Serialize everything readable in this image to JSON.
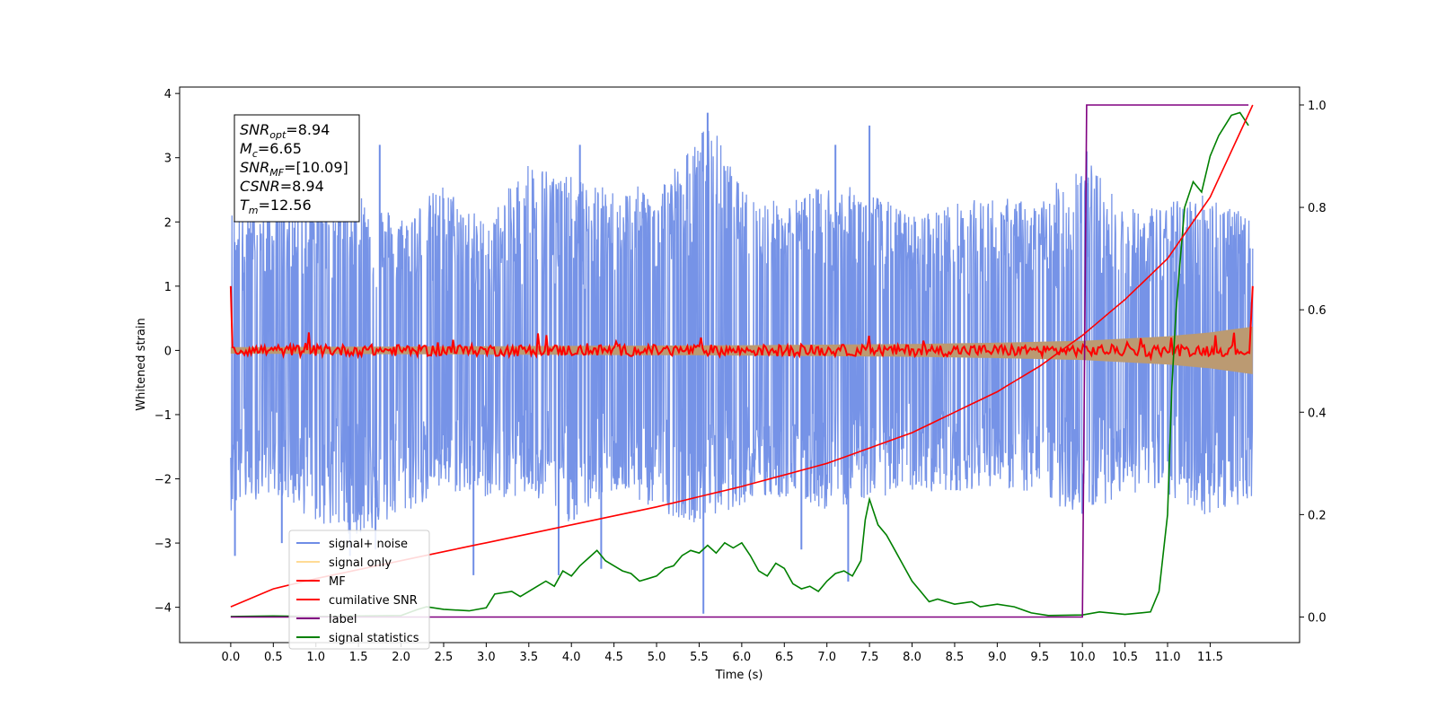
{
  "chart_data": {
    "type": "line",
    "xlabel": "Time (s)",
    "ylabel": "Whitened strain",
    "xlim": [
      -0.6,
      12.55
    ],
    "ylim": [
      -4.55,
      4.1
    ],
    "y2lim": [
      -0.05,
      1.035
    ],
    "xticks": [
      0.0,
      0.5,
      1.0,
      1.5,
      2.0,
      2.5,
      3.0,
      3.5,
      4.0,
      4.5,
      5.0,
      5.5,
      6.0,
      6.5,
      7.0,
      7.5,
      8.0,
      8.5,
      9.0,
      9.5,
      10.0,
      10.5,
      11.0,
      11.5
    ],
    "xtick_labels": [
      "0.0",
      "0.5",
      "1.0",
      "1.5",
      "2.0",
      "2.5",
      "3.0",
      "3.5",
      "4.0",
      "4.5",
      "5.0",
      "5.5",
      "6.0",
      "6.5",
      "7.0",
      "7.5",
      "8.0",
      "8.5",
      "9.0",
      "9.5",
      "10.0",
      "10.5",
      "11.0",
      "11.5"
    ],
    "yticks": [
      -4,
      -3,
      -2,
      -1,
      0,
      1,
      2,
      3,
      4
    ],
    "ytick_labels": [
      "−4",
      "−3",
      "−2",
      "−1",
      "0",
      "1",
      "2",
      "3",
      "4"
    ],
    "y2ticks": [
      0.0,
      0.2,
      0.4,
      0.6,
      0.8,
      1.0
    ],
    "y2tick_labels": [
      "0.0",
      "0.2",
      "0.4",
      "0.6",
      "0.8",
      "1.0"
    ],
    "legend_position": "lower-left",
    "grid": false,
    "series": [
      {
        "name": "signal+ noise",
        "axis": "left",
        "color": "#6f8de6",
        "x_start": 0.0,
        "x_end": 12.0,
        "envelope_top": [
          [
            0.0,
            2.2
          ],
          [
            0.5,
            2.3
          ],
          [
            1.0,
            2.7
          ],
          [
            1.5,
            2.5
          ],
          [
            2.0,
            2.1
          ],
          [
            2.5,
            2.6
          ],
          [
            3.0,
            2.0
          ],
          [
            3.5,
            3.0
          ],
          [
            4.0,
            2.7
          ],
          [
            4.5,
            2.5
          ],
          [
            5.0,
            2.6
          ],
          [
            5.5,
            3.3
          ],
          [
            5.6,
            3.7
          ],
          [
            6.0,
            2.5
          ],
          [
            6.5,
            2.3
          ],
          [
            7.0,
            2.6
          ],
          [
            7.5,
            2.5
          ],
          [
            8.0,
            2.1
          ],
          [
            8.5,
            2.3
          ],
          [
            9.0,
            2.4
          ],
          [
            9.5,
            2.3
          ],
          [
            10.0,
            3.1
          ],
          [
            10.5,
            2.2
          ],
          [
            11.0,
            2.3
          ],
          [
            11.5,
            2.5
          ],
          [
            12.0,
            2.0
          ]
        ],
        "envelope_bottom": [
          [
            0.0,
            -2.5
          ],
          [
            0.5,
            -2.2
          ],
          [
            1.0,
            -2.7
          ],
          [
            1.5,
            -2.9
          ],
          [
            2.0,
            -2.6
          ],
          [
            2.5,
            -2.2
          ],
          [
            3.0,
            -2.3
          ],
          [
            3.5,
            -2.3
          ],
          [
            4.0,
            -2.7
          ],
          [
            4.5,
            -2.2
          ],
          [
            5.0,
            -2.5
          ],
          [
            5.5,
            -2.7
          ],
          [
            6.0,
            -2.4
          ],
          [
            6.5,
            -2.3
          ],
          [
            7.0,
            -2.5
          ],
          [
            7.5,
            -2.3
          ],
          [
            8.0,
            -2.2
          ],
          [
            8.5,
            -2.2
          ],
          [
            9.0,
            -2.1
          ],
          [
            9.5,
            -2.3
          ],
          [
            10.0,
            -2.6
          ],
          [
            10.5,
            -2.2
          ],
          [
            11.0,
            -2.3
          ],
          [
            11.5,
            -2.6
          ],
          [
            12.0,
            -2.3
          ]
        ],
        "spikes": [
          [
            0.05,
            -3.2
          ],
          [
            0.6,
            -3.0
          ],
          [
            1.4,
            -3.2
          ],
          [
            1.7,
            -3.1
          ],
          [
            2.85,
            -3.5
          ],
          [
            3.85,
            -3.5
          ],
          [
            4.35,
            -3.4
          ],
          [
            5.55,
            -4.1
          ],
          [
            6.7,
            -3.1
          ],
          [
            7.25,
            -3.6
          ],
          [
            5.6,
            3.7
          ],
          [
            4.1,
            3.2
          ],
          [
            7.1,
            3.2
          ],
          [
            10.05,
            3.1
          ],
          [
            1.75,
            3.2
          ],
          [
            7.5,
            3.5
          ]
        ]
      },
      {
        "name": "signal only",
        "axis": "left",
        "color": "#ffd27a",
        "fill_color": "#bb9a72",
        "amplitude": [
          [
            0.0,
            0.05
          ],
          [
            2.0,
            0.06
          ],
          [
            4.0,
            0.07
          ],
          [
            6.0,
            0.08
          ],
          [
            8.0,
            0.1
          ],
          [
            9.0,
            0.12
          ],
          [
            10.0,
            0.15
          ],
          [
            11.0,
            0.22
          ],
          [
            11.5,
            0.28
          ],
          [
            12.0,
            0.37
          ]
        ]
      },
      {
        "name": "MF",
        "axis": "left",
        "color": "#ff0000",
        "start_value": 1.0,
        "end_value": 1.0,
        "noise_amplitude": 0.09
      },
      {
        "name": "cumilative SNR",
        "axis": "right",
        "color": "#ff0000",
        "points": [
          [
            0.0,
            0.02
          ],
          [
            0.5,
            0.055
          ],
          [
            1.0,
            0.075
          ],
          [
            2.0,
            0.11
          ],
          [
            3.0,
            0.145
          ],
          [
            4.0,
            0.18
          ],
          [
            5.0,
            0.215
          ],
          [
            6.0,
            0.255
          ],
          [
            7.0,
            0.3
          ],
          [
            8.0,
            0.36
          ],
          [
            9.0,
            0.44
          ],
          [
            9.5,
            0.49
          ],
          [
            10.0,
            0.55
          ],
          [
            10.5,
            0.62
          ],
          [
            11.0,
            0.7
          ],
          [
            11.5,
            0.82
          ],
          [
            12.0,
            1.0
          ]
        ]
      },
      {
        "name": "label",
        "axis": "right",
        "color": "#800080",
        "points": [
          [
            0.0,
            0.0
          ],
          [
            10.0,
            0.0
          ],
          [
            10.05,
            1.0
          ],
          [
            11.95,
            1.0
          ]
        ]
      },
      {
        "name": "signal statistics",
        "axis": "right",
        "color": "#008000",
        "points": [
          [
            0.0,
            0.001
          ],
          [
            0.5,
            0.002
          ],
          [
            1.0,
            0.001
          ],
          [
            1.5,
            0.002
          ],
          [
            2.0,
            0.003
          ],
          [
            2.2,
            0.015
          ],
          [
            2.3,
            0.02
          ],
          [
            2.5,
            0.015
          ],
          [
            2.8,
            0.012
          ],
          [
            3.0,
            0.018
          ],
          [
            3.1,
            0.045
          ],
          [
            3.3,
            0.05
          ],
          [
            3.4,
            0.04
          ],
          [
            3.6,
            0.06
          ],
          [
            3.7,
            0.07
          ],
          [
            3.8,
            0.06
          ],
          [
            3.9,
            0.09
          ],
          [
            4.0,
            0.08
          ],
          [
            4.1,
            0.1
          ],
          [
            4.2,
            0.115
          ],
          [
            4.3,
            0.13
          ],
          [
            4.4,
            0.11
          ],
          [
            4.5,
            0.1
          ],
          [
            4.6,
            0.09
          ],
          [
            4.7,
            0.085
          ],
          [
            4.8,
            0.07
          ],
          [
            4.9,
            0.075
          ],
          [
            5.0,
            0.08
          ],
          [
            5.1,
            0.095
          ],
          [
            5.2,
            0.1
          ],
          [
            5.3,
            0.12
          ],
          [
            5.4,
            0.13
          ],
          [
            5.5,
            0.125
          ],
          [
            5.6,
            0.14
          ],
          [
            5.7,
            0.125
          ],
          [
            5.8,
            0.145
          ],
          [
            5.9,
            0.135
          ],
          [
            6.0,
            0.145
          ],
          [
            6.1,
            0.12
          ],
          [
            6.2,
            0.09
          ],
          [
            6.3,
            0.08
          ],
          [
            6.4,
            0.105
          ],
          [
            6.5,
            0.095
          ],
          [
            6.6,
            0.065
          ],
          [
            6.7,
            0.055
          ],
          [
            6.8,
            0.06
          ],
          [
            6.9,
            0.05
          ],
          [
            7.0,
            0.07
          ],
          [
            7.1,
            0.085
          ],
          [
            7.2,
            0.09
          ],
          [
            7.3,
            0.08
          ],
          [
            7.4,
            0.11
          ],
          [
            7.45,
            0.19
          ],
          [
            7.5,
            0.23
          ],
          [
            7.6,
            0.18
          ],
          [
            7.7,
            0.16
          ],
          [
            7.8,
            0.13
          ],
          [
            7.9,
            0.1
          ],
          [
            8.0,
            0.07
          ],
          [
            8.1,
            0.05
          ],
          [
            8.2,
            0.03
          ],
          [
            8.3,
            0.035
          ],
          [
            8.5,
            0.025
          ],
          [
            8.7,
            0.03
          ],
          [
            8.8,
            0.02
          ],
          [
            9.0,
            0.025
          ],
          [
            9.2,
            0.02
          ],
          [
            9.4,
            0.008
          ],
          [
            9.6,
            0.003
          ],
          [
            10.0,
            0.004
          ],
          [
            10.2,
            0.01
          ],
          [
            10.5,
            0.005
          ],
          [
            10.8,
            0.01
          ],
          [
            10.9,
            0.05
          ],
          [
            11.0,
            0.2
          ],
          [
            11.05,
            0.45
          ],
          [
            11.1,
            0.6
          ],
          [
            11.2,
            0.8
          ],
          [
            11.3,
            0.85
          ],
          [
            11.4,
            0.83
          ],
          [
            11.5,
            0.9
          ],
          [
            11.6,
            0.94
          ],
          [
            11.75,
            0.98
          ],
          [
            11.85,
            0.985
          ],
          [
            11.95,
            0.96
          ]
        ]
      }
    ],
    "annotation": {
      "lines": [
        {
          "var": "SNR",
          "sub": "opt",
          "value": "=8.94"
        },
        {
          "var": "M",
          "sub": "c",
          "value": "=6.65"
        },
        {
          "var": "SNR",
          "sub": "MF",
          "value": "=[10.09]"
        },
        {
          "var": "CSNR",
          "sub": "",
          "value": "=8.94"
        },
        {
          "var": "T",
          "sub": "m",
          "value": "=12.56"
        }
      ]
    }
  }
}
